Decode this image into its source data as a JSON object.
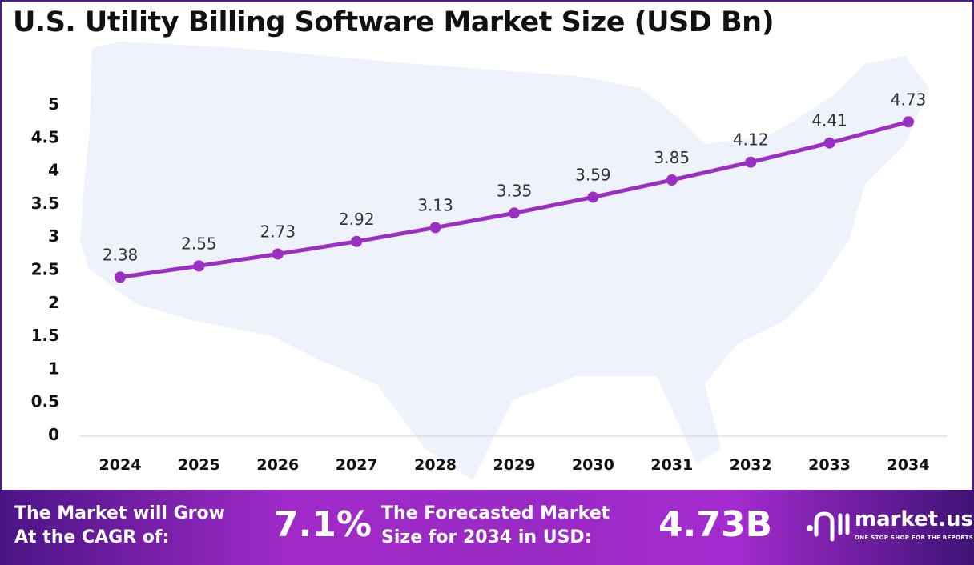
{
  "chart_data": {
    "type": "line",
    "title": "U.S. Utility Billing Software Market Size (USD Bn)",
    "categories": [
      "2024",
      "2025",
      "2026",
      "2027",
      "2028",
      "2029",
      "2030",
      "2031",
      "2032",
      "2033",
      "2034"
    ],
    "values": [
      2.38,
      2.55,
      2.73,
      2.92,
      3.13,
      3.35,
      3.59,
      3.85,
      4.12,
      4.41,
      4.73
    ],
    "data_labels": [
      "2.38",
      "2.55",
      "2.73",
      "2.92",
      "3.13",
      "3.35",
      "3.59",
      "3.85",
      "4.12",
      "4.41",
      "4.73"
    ],
    "yticks": [
      "0",
      "0.5",
      "1",
      "1.5",
      "2",
      "2.5",
      "3",
      "3.5",
      "4",
      "4.5",
      "5"
    ],
    "ylim": [
      0,
      5
    ],
    "grid": false,
    "line_color": "#9b2fc4",
    "background_image": "us-map-silhouette"
  },
  "footer": {
    "cagr_label_1": "The Market will Grow",
    "cagr_label_2": "At the CAGR of:",
    "cagr_value": "7.1%",
    "forecast_label_1": "The Forecasted Market",
    "forecast_label_2": "Size for 2034 in USD:",
    "forecast_value": "4.73B",
    "logo_name": "market.us",
    "logo_tagline": "ONE STOP SHOP FOR THE REPORTS"
  }
}
